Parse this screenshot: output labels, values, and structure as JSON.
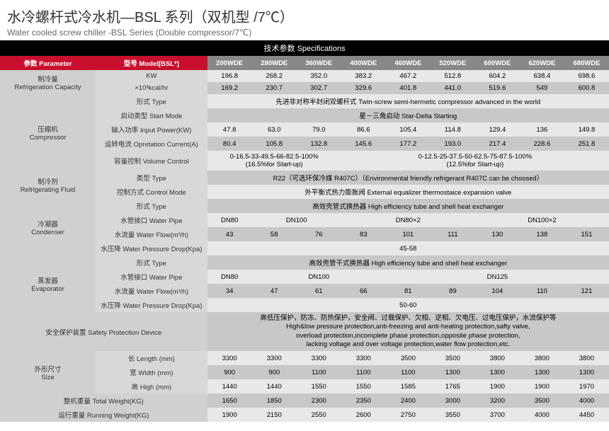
{
  "title_cn": "水冷螺杆式冷水机—BSL 系列（双机型 /7℃）",
  "title_en": "Water cooled screw chiller -BSL Series (Double compressor/7℃)",
  "spec_header": "技术参数 Specifications",
  "hdr": {
    "param": "参数 Parameter",
    "model": "型号 Model[BSL*]"
  },
  "models": [
    "200WDE",
    "280WDE",
    "360WDE",
    "400WDE",
    "460WDE",
    "520WDE",
    "600WDE",
    "620WDE",
    "680WDE"
  ],
  "refrig_cap": {
    "label": "制冷量\nRefrigeration Capacity",
    "kw_label": "KW",
    "kw": [
      "196.8",
      "268.2",
      "352.0",
      "383.2",
      "467.2",
      "512.8",
      "604.2",
      "638.4",
      "698.6"
    ],
    "kcal_label": "×10³kcal/hr",
    "kcal": [
      "169.2",
      "230.7",
      "302.7",
      "329.6",
      "401.8",
      "441.0",
      "519.6",
      "549",
      "600.8"
    ]
  },
  "compressor": {
    "label": "压缩机\nCompressor",
    "type_label": "形式 Type",
    "type_val": "先进非对称半封闭双螺杆式 Twin-screw semi-hermetic compressor advanced in the world",
    "start_label": "启动类型 Start Mode",
    "start_val": "星－三角启动 Star-Delta Starting",
    "power_label": "输入功率 Input Power(KW)",
    "power": [
      "47.8",
      "63.0",
      "79.0",
      "86.6",
      "105.4",
      "114.8",
      "129.4",
      "136",
      "149.8"
    ],
    "current_label": "运转电流 Opretation Current(A)",
    "current": [
      "80.4",
      "105.8",
      "132.8",
      "145.6",
      "177.2",
      "193.0",
      "217.4",
      "228.6",
      "251.8"
    ],
    "vol_label": "容量控制 Volume Control",
    "vol1": "0-16.5-33-49.5-66-82.5-100%\n(16.5%for Start-up)",
    "vol2": "0-12.5-25-37.5-50-62.5-75-87.5-100%\n(12.5%for Start-up)"
  },
  "fluid": {
    "label": "制冷剂\nRefrigerating Fluid",
    "type_label": "类型 Type",
    "type_val": "R22（可选环保冷媒 R407C）（Environmental friendly refrigerant R407C can be choosed）",
    "ctrl_label": "控制方式 Control Mode",
    "ctrl_val": "外平衡式热力膨胀阀 External equalizer thermostaice expansion valve"
  },
  "condenser": {
    "label": "冷凝器\nCondenser",
    "type_label": "形式 Type",
    "type_val": "高效壳管式换热器 High efficiency tube and shell heat exchanger",
    "pipe_label": "水管接口 Water Pipe",
    "pipe": [
      "DN80",
      "DN100",
      "DN80×2",
      "DN100×2"
    ],
    "flow_label": "水流量 Water Flow(m³/h)",
    "flow": [
      "43",
      "58",
      "76",
      "83",
      "101",
      "111",
      "130",
      "138",
      "151"
    ],
    "drop_label": "水压降 Water Pressure Drop(Kpa)",
    "drop_val": "45-58"
  },
  "evaporator": {
    "label": "蒸发器\nEvaporator",
    "type_label": "形式 Type",
    "type_val": "高效壳管干式换热器 High efficiency tube and shell heat exchanger",
    "pipe_label": "水管接口 Water Pipe",
    "pipe": [
      "DN80",
      "DN100",
      "DN125"
    ],
    "flow_label": "水流量 Water Flow(m³/h)",
    "flow": [
      "34",
      "47",
      "61",
      "66",
      "81",
      "89",
      "104",
      "110",
      "121"
    ],
    "drop_label": "水压降 Water Pressure Drop(Kpa)",
    "drop_val": "50-60"
  },
  "safety": {
    "label": "安全保护装置 Safety Protection Device",
    "val": "高低压保护，防冻、防热保护，安全阀、过载保护、欠相、逆相、欠电压、过电压保护，水流保护等\nHigh&low pressure protection,anti-freezing and anti-heating protection,safty valve,\noverload protection,incomplete phase protection,opposite phase protection,\nlacking voltage and over voltage protection,water flow protection,etc."
  },
  "size": {
    "label": "外形尺寸\nSize",
    "len_label": "长 Length (mm)",
    "len": [
      "3300",
      "3300",
      "3300",
      "3300",
      "3500",
      "3500",
      "3800",
      "3800",
      "3800"
    ],
    "wid_label": "宽 Width (mm)",
    "wid": [
      "900",
      "900",
      "1100",
      "1100",
      "1100",
      "1300",
      "1300",
      "1300",
      "1300"
    ],
    "hgt_label": "高 High (mm)",
    "hgt": [
      "1440",
      "1440",
      "1550",
      "1550",
      "1585",
      "1765",
      "1900",
      "1900",
      "1970"
    ]
  },
  "total_w": {
    "label": "整机重量 Total Weight(KG)",
    "vals": [
      "1650",
      "1850",
      "2300",
      "2350",
      "2400",
      "3000",
      "3200",
      "3500",
      "4000"
    ]
  },
  "run_w": {
    "label": "运行重量 Running Weight(KG)",
    "vals": [
      "1900",
      "2150",
      "2550",
      "2600",
      "2750",
      "3550",
      "3700",
      "4000",
      "4450"
    ]
  }
}
